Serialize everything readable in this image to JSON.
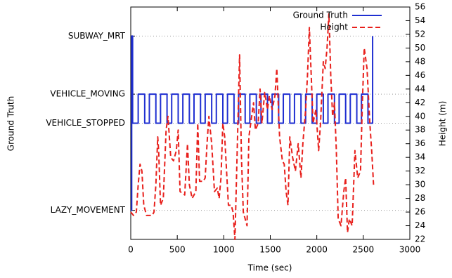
{
  "chart_data": {
    "type": "line",
    "xlabel": "Time (sec)",
    "ylabel": "Ground Truth",
    "y2label": "Height (m)",
    "xlim": [
      0,
      3000
    ],
    "xticks": [
      0,
      500,
      1000,
      1500,
      2000,
      2500,
      3000
    ],
    "ylim": [
      -1,
      7
    ],
    "yticks": [
      {
        "value": 0,
        "label": "LAZY_MOVEMENT"
      },
      {
        "value": 3,
        "label": "VEHICLE_STOPPED"
      },
      {
        "value": 4,
        "label": "VEHICLE_MOVING"
      },
      {
        "value": 6,
        "label": "SUBWAY_MRT"
      }
    ],
    "y2lim": [
      22,
      56
    ],
    "y2ticks": [
      22,
      24,
      26,
      28,
      30,
      32,
      34,
      36,
      38,
      40,
      42,
      44,
      46,
      48,
      50,
      52,
      54,
      56
    ],
    "grid": "y",
    "legend": "top right",
    "series": [
      {
        "name": "Ground Truth",
        "color": "#1f2fd1",
        "axis": "y",
        "dashed": false,
        "x": [
          0,
          10,
          10,
          20,
          20,
          80,
          80,
          150,
          150,
          200,
          200,
          270,
          270,
          320,
          320,
          390,
          390,
          440,
          440,
          510,
          510,
          560,
          560,
          630,
          630,
          680,
          680,
          750,
          750,
          800,
          800,
          870,
          870,
          920,
          920,
          990,
          990,
          1040,
          1040,
          1110,
          1110,
          1160,
          1160,
          1230,
          1230,
          1280,
          1280,
          1350,
          1350,
          1400,
          1400,
          1470,
          1470,
          1520,
          1520,
          1590,
          1590,
          1640,
          1640,
          1710,
          1710,
          1760,
          1760,
          1830,
          1830,
          1880,
          1880,
          1950,
          1950,
          2000,
          2000,
          2070,
          2070,
          2120,
          2120,
          2190,
          2190,
          2240,
          2240,
          2310,
          2310,
          2360,
          2360,
          2430,
          2430,
          2480,
          2480,
          2550,
          2550,
          2600,
          2600
        ],
        "values": [
          0,
          0,
          6,
          6,
          3,
          3,
          4,
          4,
          3,
          3,
          4,
          4,
          3,
          3,
          4,
          4,
          3,
          3,
          4,
          4,
          3,
          3,
          4,
          4,
          3,
          3,
          4,
          4,
          3,
          3,
          4,
          4,
          3,
          3,
          4,
          4,
          3,
          3,
          4,
          4,
          3,
          3,
          4,
          4,
          3,
          3,
          4,
          4,
          3,
          3,
          4,
          4,
          3,
          3,
          4,
          4,
          3,
          3,
          4,
          4,
          3,
          3,
          4,
          4,
          3,
          3,
          4,
          4,
          3,
          3,
          4,
          4,
          3,
          3,
          4,
          4,
          3,
          3,
          4,
          4,
          3,
          3,
          4,
          4,
          3,
          3,
          4,
          4,
          3,
          3,
          6
        ]
      },
      {
        "name": "Height",
        "color": "#e8201c",
        "axis": "y2",
        "dashed": true,
        "x": [
          0,
          30,
          60,
          80,
          100,
          120,
          140,
          170,
          230,
          250,
          270,
          290,
          300,
          320,
          350,
          380,
          400,
          430,
          460,
          490,
          510,
          530,
          580,
          610,
          630,
          660,
          700,
          720,
          740,
          780,
          800,
          820,
          840,
          870,
          900,
          930,
          950,
          970,
          990,
          1010,
          1050,
          1080,
          1100,
          1120,
          1150,
          1170,
          1190,
          1210,
          1250,
          1270,
          1300,
          1320,
          1340,
          1370,
          1390,
          1410,
          1440,
          1470,
          1490,
          1520,
          1550,
          1570,
          1600,
          1630,
          1650,
          1670,
          1690,
          1710,
          1740,
          1770,
          1800,
          1830,
          1850,
          1880,
          1900,
          1920,
          1940,
          1960,
          1990,
          2020,
          2040,
          2070,
          2090,
          2110,
          2130,
          2150,
          2170,
          2190,
          2210,
          2230,
          2260,
          2290,
          2310,
          2330,
          2350,
          2380,
          2410,
          2440,
          2470,
          2490,
          2510,
          2540,
          2570,
          2590,
          2610
        ],
        "values": [
          26,
          25.5,
          26,
          30,
          33,
          32,
          27,
          25.5,
          25.5,
          26,
          30,
          37,
          35,
          27,
          28,
          38,
          40,
          34,
          33.5,
          35,
          38,
          29,
          28.5,
          36,
          30,
          28,
          29,
          39,
          30.5,
          30.5,
          31,
          36,
          40,
          36,
          29,
          29.5,
          28,
          31,
          39,
          37,
          27,
          27,
          26,
          22,
          38,
          49,
          34,
          26,
          24,
          37,
          40,
          42,
          38,
          39,
          44,
          39,
          43.5,
          41,
          43,
          41,
          43,
          47,
          37,
          33.5,
          33,
          29,
          27,
          37,
          34,
          32,
          36,
          31,
          36,
          41,
          46,
          53,
          46,
          39,
          41,
          35,
          39,
          48,
          47,
          50,
          55,
          46,
          40,
          42,
          35,
          25,
          24,
          29,
          31,
          23,
          25,
          24,
          35,
          31,
          32,
          42,
          50,
          47,
          39,
          35,
          30
        ]
      }
    ]
  }
}
